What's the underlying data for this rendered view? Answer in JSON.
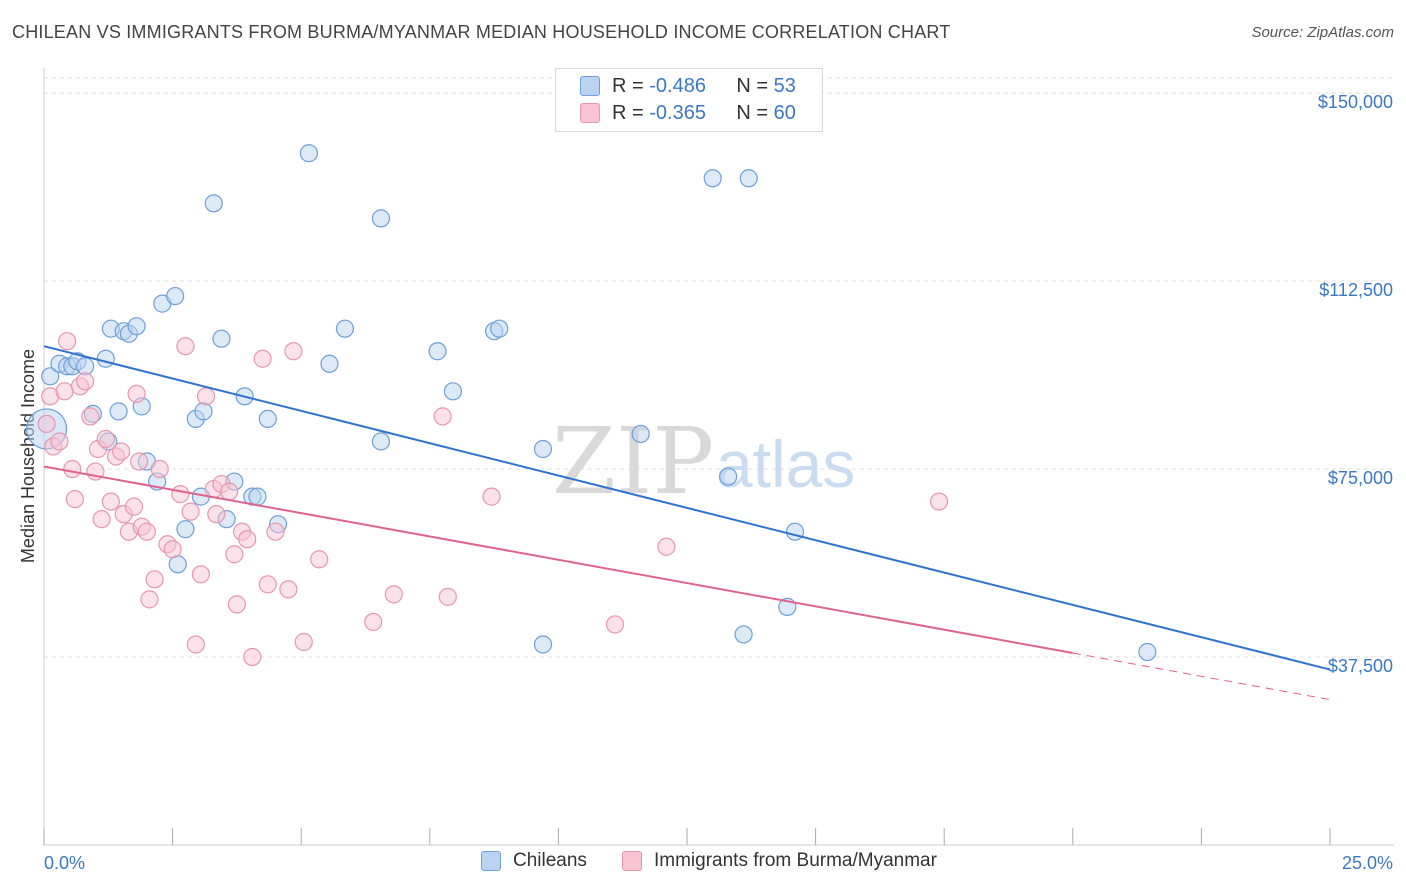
{
  "header": {
    "title": "CHILEAN VS IMMIGRANTS FROM BURMA/MYANMAR MEDIAN HOUSEHOLD INCOME CORRELATION CHART",
    "source": "Source: ZipAtlas.com"
  },
  "watermark": {
    "zip": "ZIP",
    "atlas": "atlas"
  },
  "colors": {
    "blue_fill": "#b9d3f0",
    "blue_stroke": "#6d9fd9",
    "blue_line": "#2f73cf",
    "pink_fill": "#f8c4d3",
    "pink_stroke": "#e896b0",
    "pink_line": "#e0628f",
    "grid": "#dcdcdc",
    "tick_text": "#3b78c4"
  },
  "legend_top": {
    "rows": [
      {
        "r_label": "R =",
        "r_value": "-0.486",
        "n_label": "N =",
        "n_value": "53"
      },
      {
        "r_label": "R =",
        "r_value": "-0.365",
        "n_label": "N =",
        "n_value": "60"
      }
    ]
  },
  "legend_bottom": {
    "items": [
      "Chileans",
      "Immigrants from Burma/Myanmar"
    ]
  },
  "chart_data": {
    "type": "scatter",
    "title": "CHILEAN VS IMMIGRANTS FROM BURMA/MYANMAR MEDIAN HOUSEHOLD INCOME CORRELATION CHART",
    "xlabel": "",
    "ylabel": "Median Household Income",
    "xlim": [
      0,
      25
    ],
    "ylim": [
      0,
      155000
    ],
    "x_unit": "%",
    "x_tick_labels": [
      "0.0%",
      "25.0%"
    ],
    "y_ticks": [
      37500,
      75000,
      112500,
      150000
    ],
    "y_tick_labels": [
      "$37,500",
      "$75,000",
      "$112,500",
      "$150,000"
    ],
    "grid": "horizontal dashed",
    "legend_position": "top-center and bottom",
    "series": [
      {
        "name": "Chileans",
        "r": -0.486,
        "n": 53,
        "trend": {
          "x": [
            0,
            25
          ],
          "y": [
            99500,
            35000
          ],
          "dashed_from": null
        },
        "points": [
          [
            0.05,
            83000
          ],
          [
            0.12,
            93500
          ],
          [
            0.3,
            96000
          ],
          [
            0.45,
            95500
          ],
          [
            0.55,
            95500
          ],
          [
            0.65,
            96500
          ],
          [
            0.8,
            95500
          ],
          [
            0.95,
            86000
          ],
          [
            1.2,
            97000
          ],
          [
            1.25,
            80500
          ],
          [
            1.3,
            103000
          ],
          [
            1.45,
            86500
          ],
          [
            1.55,
            102500
          ],
          [
            1.65,
            102000
          ],
          [
            1.8,
            103500
          ],
          [
            1.9,
            87500
          ],
          [
            2.0,
            76500
          ],
          [
            2.2,
            72500
          ],
          [
            2.3,
            108000
          ],
          [
            2.55,
            109500
          ],
          [
            2.6,
            56000
          ],
          [
            2.75,
            63000
          ],
          [
            2.95,
            85000
          ],
          [
            3.05,
            69500
          ],
          [
            3.1,
            86500
          ],
          [
            3.3,
            128000
          ],
          [
            3.45,
            101000
          ],
          [
            3.55,
            65000
          ],
          [
            3.7,
            72500
          ],
          [
            3.9,
            89500
          ],
          [
            4.05,
            69500
          ],
          [
            4.15,
            69500
          ],
          [
            4.35,
            85000
          ],
          [
            4.55,
            64000
          ],
          [
            5.15,
            138000
          ],
          [
            5.55,
            96000
          ],
          [
            5.85,
            103000
          ],
          [
            6.55,
            125000
          ],
          [
            6.55,
            80500
          ],
          [
            7.65,
            98500
          ],
          [
            7.95,
            90500
          ],
          [
            8.75,
            102500
          ],
          [
            8.85,
            103000
          ],
          [
            9.7,
            40000
          ],
          [
            9.7,
            79000
          ],
          [
            11.6,
            82000
          ],
          [
            13.0,
            133000
          ],
          [
            13.3,
            73500
          ],
          [
            13.6,
            42000
          ],
          [
            13.7,
            133000
          ],
          [
            14.45,
            47500
          ],
          [
            14.6,
            62500
          ],
          [
            21.45,
            38500
          ]
        ]
      },
      {
        "name": "Immigrants from Burma/Myanmar",
        "r": -0.365,
        "n": 60,
        "trend": {
          "x": [
            0,
            25
          ],
          "y": [
            75500,
            29000
          ],
          "dashed_from": 20
        },
        "points": [
          [
            0.05,
            84000
          ],
          [
            0.12,
            89500
          ],
          [
            0.18,
            79500
          ],
          [
            0.3,
            80500
          ],
          [
            0.4,
            90500
          ],
          [
            0.45,
            100500
          ],
          [
            0.55,
            75000
          ],
          [
            0.6,
            69000
          ],
          [
            0.7,
            91500
          ],
          [
            0.8,
            92500
          ],
          [
            0.9,
            85500
          ],
          [
            1.0,
            74500
          ],
          [
            1.05,
            79000
          ],
          [
            1.12,
            65000
          ],
          [
            1.2,
            81000
          ],
          [
            1.3,
            68500
          ],
          [
            1.4,
            77500
          ],
          [
            1.5,
            78500
          ],
          [
            1.55,
            66000
          ],
          [
            1.65,
            62500
          ],
          [
            1.75,
            67500
          ],
          [
            1.8,
            90000
          ],
          [
            1.85,
            76500
          ],
          [
            1.9,
            63500
          ],
          [
            2.0,
            62500
          ],
          [
            2.05,
            49000
          ],
          [
            2.15,
            53000
          ],
          [
            2.25,
            75000
          ],
          [
            2.4,
            60000
          ],
          [
            2.5,
            59000
          ],
          [
            2.65,
            70000
          ],
          [
            2.75,
            99500
          ],
          [
            2.85,
            66500
          ],
          [
            2.95,
            40000
          ],
          [
            3.05,
            54000
          ],
          [
            3.15,
            89500
          ],
          [
            3.3,
            71000
          ],
          [
            3.35,
            66000
          ],
          [
            3.45,
            72000
          ],
          [
            3.6,
            70500
          ],
          [
            3.7,
            58000
          ],
          [
            3.75,
            48000
          ],
          [
            3.85,
            62500
          ],
          [
            3.95,
            61000
          ],
          [
            4.05,
            37500
          ],
          [
            4.25,
            97000
          ],
          [
            4.35,
            52000
          ],
          [
            4.5,
            62500
          ],
          [
            4.75,
            51000
          ],
          [
            4.85,
            98500
          ],
          [
            5.05,
            40500
          ],
          [
            5.35,
            57000
          ],
          [
            6.4,
            44500
          ],
          [
            6.8,
            50000
          ],
          [
            7.75,
            85500
          ],
          [
            7.85,
            49500
          ],
          [
            8.7,
            69500
          ],
          [
            11.1,
            44000
          ],
          [
            12.1,
            59500
          ],
          [
            17.4,
            68500
          ]
        ]
      }
    ]
  }
}
